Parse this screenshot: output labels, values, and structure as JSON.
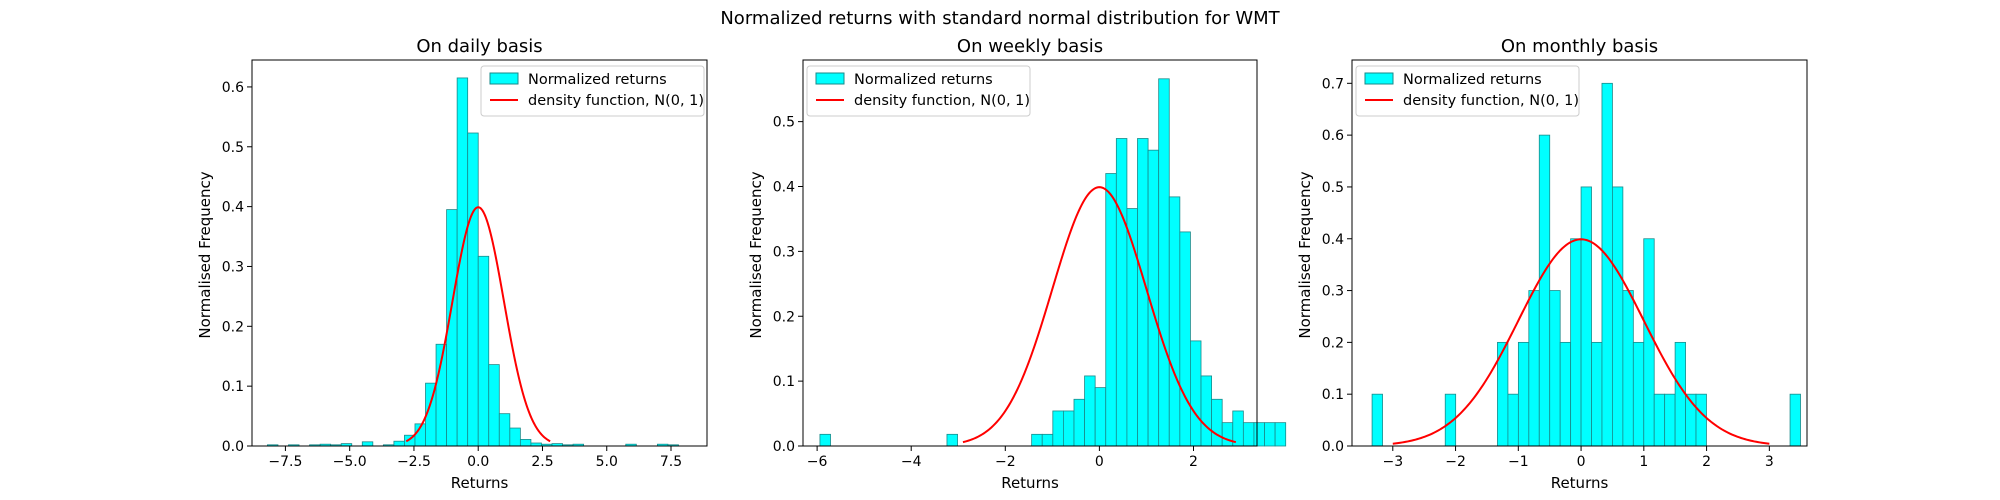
{
  "figure_title": "Normalized returns with standard normal distribution for WMT",
  "colors": {
    "bar_fill": "#00ffff",
    "bar_edge": "#1a8a8a",
    "curve": "#ff0000",
    "legend_edge": "#cccccc"
  },
  "chart_data": [
    {
      "type": "histogram",
      "title": "On daily basis",
      "xlabel": "Returns",
      "ylabel": "Normalised Frequency",
      "xlim": [
        -8.8,
        8.9
      ],
      "ylim": [
        0,
        0.645
      ],
      "xticks": [
        -7.5,
        -5.0,
        -2.5,
        0.0,
        2.5,
        5.0,
        7.5
      ],
      "xtick_labels": [
        "−7.5",
        "−5.0",
        "−2.5",
        "0.0",
        "2.5",
        "5.0",
        "7.5"
      ],
      "yticks": [
        0.0,
        0.1,
        0.2,
        0.3,
        0.4,
        0.5,
        0.6
      ],
      "ytick_labels": [
        "0.0",
        "0.1",
        "0.2",
        "0.3",
        "0.4",
        "0.5",
        "0.6"
      ],
      "bin_start": -8.2,
      "bin_width": 0.41,
      "values": [
        0.002,
        0,
        0.002,
        0,
        0.002,
        0.003,
        0.002,
        0.004,
        0,
        0.007,
        0,
        0.002,
        0.008,
        0.018,
        0.037,
        0.105,
        0.17,
        0.395,
        0.615,
        0.523,
        0.317,
        0.136,
        0.054,
        0.03,
        0.011,
        0.005,
        0.003,
        0.004,
        0.002,
        0.003,
        0,
        0,
        0,
        0,
        0.003,
        0,
        0,
        0.003,
        0.002,
        0
      ],
      "curve_range": [
        -2.8,
        2.8
      ],
      "legend": [
        "Normalized returns",
        "density function, N(0, 1)"
      ],
      "legend_position": "upper right"
    },
    {
      "type": "histogram",
      "title": "On weekly basis",
      "xlabel": "Returns",
      "ylabel": "Normalised Frequency",
      "xlim": [
        -6.3,
        3.35
      ],
      "ylim": [
        0,
        0.595
      ],
      "xticks": [
        -6,
        -4,
        -2,
        0,
        2
      ],
      "xtick_labels": [
        "−6",
        "−4",
        "−2",
        "0",
        "2"
      ],
      "yticks": [
        0.0,
        0.1,
        0.2,
        0.3,
        0.4,
        0.5
      ],
      "ytick_labels": [
        "0.0",
        "0.1",
        "0.2",
        "0.3",
        "0.4",
        "0.5"
      ],
      "bin_start": -5.94,
      "bin_width": 0.225,
      "values": [
        0.018,
        0,
        0,
        0,
        0,
        0,
        0,
        0,
        0,
        0,
        0,
        0,
        0.018,
        0,
        0,
        0,
        0,
        0,
        0,
        0,
        0.018,
        0.018,
        0.054,
        0.054,
        0.072,
        0.108,
        0.09,
        0.42,
        0.474,
        0.366,
        0.474,
        0.456,
        0.566,
        0.384,
        0.33,
        0.162,
        0.108,
        0.072,
        0.036,
        0.054,
        0.036,
        0.036,
        0.036,
        0.036
      ],
      "curve_range": [
        -2.9,
        2.9
      ],
      "legend": [
        "Normalized returns",
        "density function, N(0, 1)"
      ],
      "legend_position": "upper left"
    },
    {
      "type": "histogram",
      "title": "On monthly basis",
      "xlabel": "Returns",
      "ylabel": "Normalised Frequency",
      "xlim": [
        -3.65,
        3.6
      ],
      "ylim": [
        0,
        0.745
      ],
      "xticks": [
        -3,
        -2,
        -1,
        0,
        1,
        2,
        3
      ],
      "xtick_labels": [
        "−3",
        "−2",
        "−1",
        "0",
        "1",
        "2",
        "3"
      ],
      "yticks": [
        0.0,
        0.1,
        0.2,
        0.3,
        0.4,
        0.5,
        0.6,
        0.7
      ],
      "ytick_labels": [
        "0.0",
        "0.1",
        "0.2",
        "0.3",
        "0.4",
        "0.5",
        "0.6",
        "0.7"
      ],
      "bin_start": -3.33,
      "bin_width": 0.1665,
      "values": [
        0.1,
        0,
        0,
        0,
        0,
        0,
        0,
        0.1,
        0,
        0,
        0,
        0,
        0.2,
        0.1,
        0.2,
        0.3,
        0.6,
        0.3,
        0.2,
        0.4,
        0.5,
        0.2,
        0.7,
        0.5,
        0.3,
        0.2,
        0.4,
        0.1,
        0.1,
        0.2,
        0.1,
        0.1,
        0,
        0,
        0,
        0,
        0,
        0,
        0,
        0,
        0.1
      ],
      "curve_range": [
        -3.0,
        3.0
      ],
      "legend": [
        "Normalized returns",
        "density function, N(0, 1)"
      ],
      "legend_position": "upper left"
    }
  ]
}
